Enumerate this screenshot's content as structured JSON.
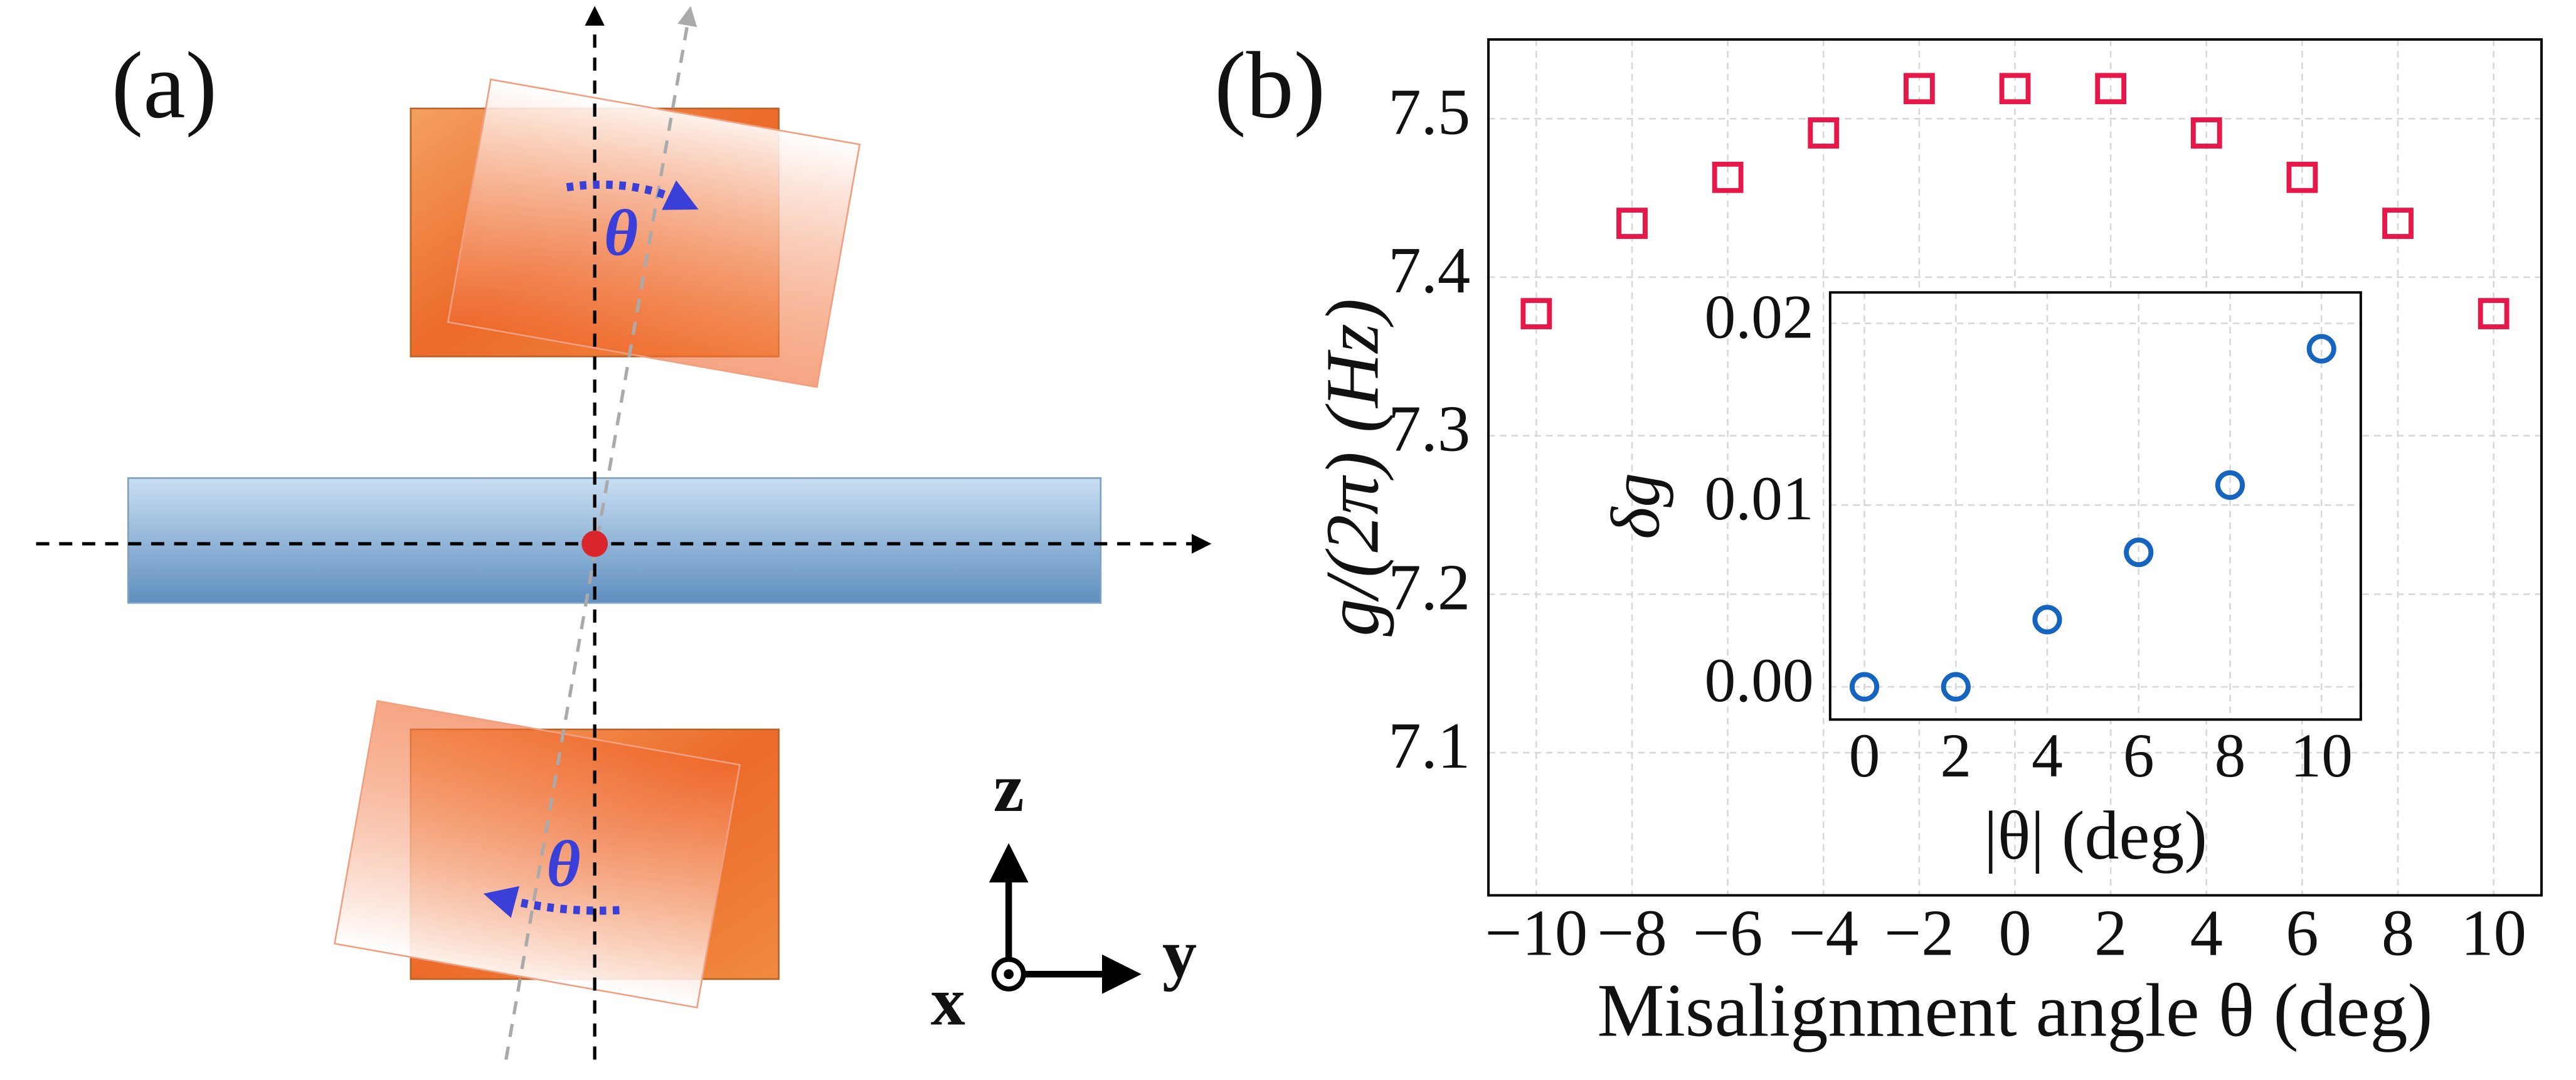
{
  "diagram": {
    "panel_label": "(a)",
    "theta_top": "θ",
    "theta_bottom": "θ",
    "axis_z": "z",
    "axis_y": "y",
    "axis_x": "x"
  },
  "panel_label_b": "(b)",
  "chart_data": [
    {
      "type": "scatter",
      "marker": "square",
      "grid": true,
      "xlabel": "Misalignment angle θ (deg)",
      "ylabel": "g/(2π) (Hz)",
      "x": [
        -10,
        -8,
        -6,
        -4,
        -2,
        0,
        2,
        4,
        6,
        8,
        10
      ],
      "series": [
        {
          "color": "#e8174a",
          "values": [
            7.377,
            7.434,
            7.463,
            7.491,
            7.519,
            7.519,
            7.519,
            7.491,
            7.463,
            7.434,
            7.377
          ]
        }
      ],
      "xlim": [
        -11,
        11
      ],
      "ylim": [
        7.01,
        7.55
      ],
      "xticks": [
        {
          "value": -10,
          "label": "−10"
        },
        {
          "value": -8,
          "label": "−8"
        },
        {
          "value": -6,
          "label": "−6"
        },
        {
          "value": -4,
          "label": "−4"
        },
        {
          "value": -2,
          "label": "−2"
        },
        0,
        2,
        4,
        6,
        8,
        10
      ],
      "yticks": [
        7.1,
        7.2,
        7.3,
        7.4,
        7.5
      ]
    },
    {
      "type": "scatter",
      "marker": "circle",
      "grid": true,
      "xlabel": "|θ| (deg)",
      "ylabel": "δg",
      "x": [
        0,
        2,
        4,
        6,
        8,
        10
      ],
      "series": [
        {
          "color": "#1565c0",
          "values": [
            0,
            0,
            0.0037,
            0.0074,
            0.0111,
            0.0186
          ]
        }
      ],
      "xlim": [
        -0.75,
        10.86
      ],
      "ylim": [
        -0.0018,
        0.0217
      ],
      "xticks": [
        0,
        2,
        4,
        6,
        8,
        10
      ],
      "yticks": [
        {
          "value": 0,
          "label": "0.00"
        },
        0.01,
        0.02
      ]
    }
  ]
}
